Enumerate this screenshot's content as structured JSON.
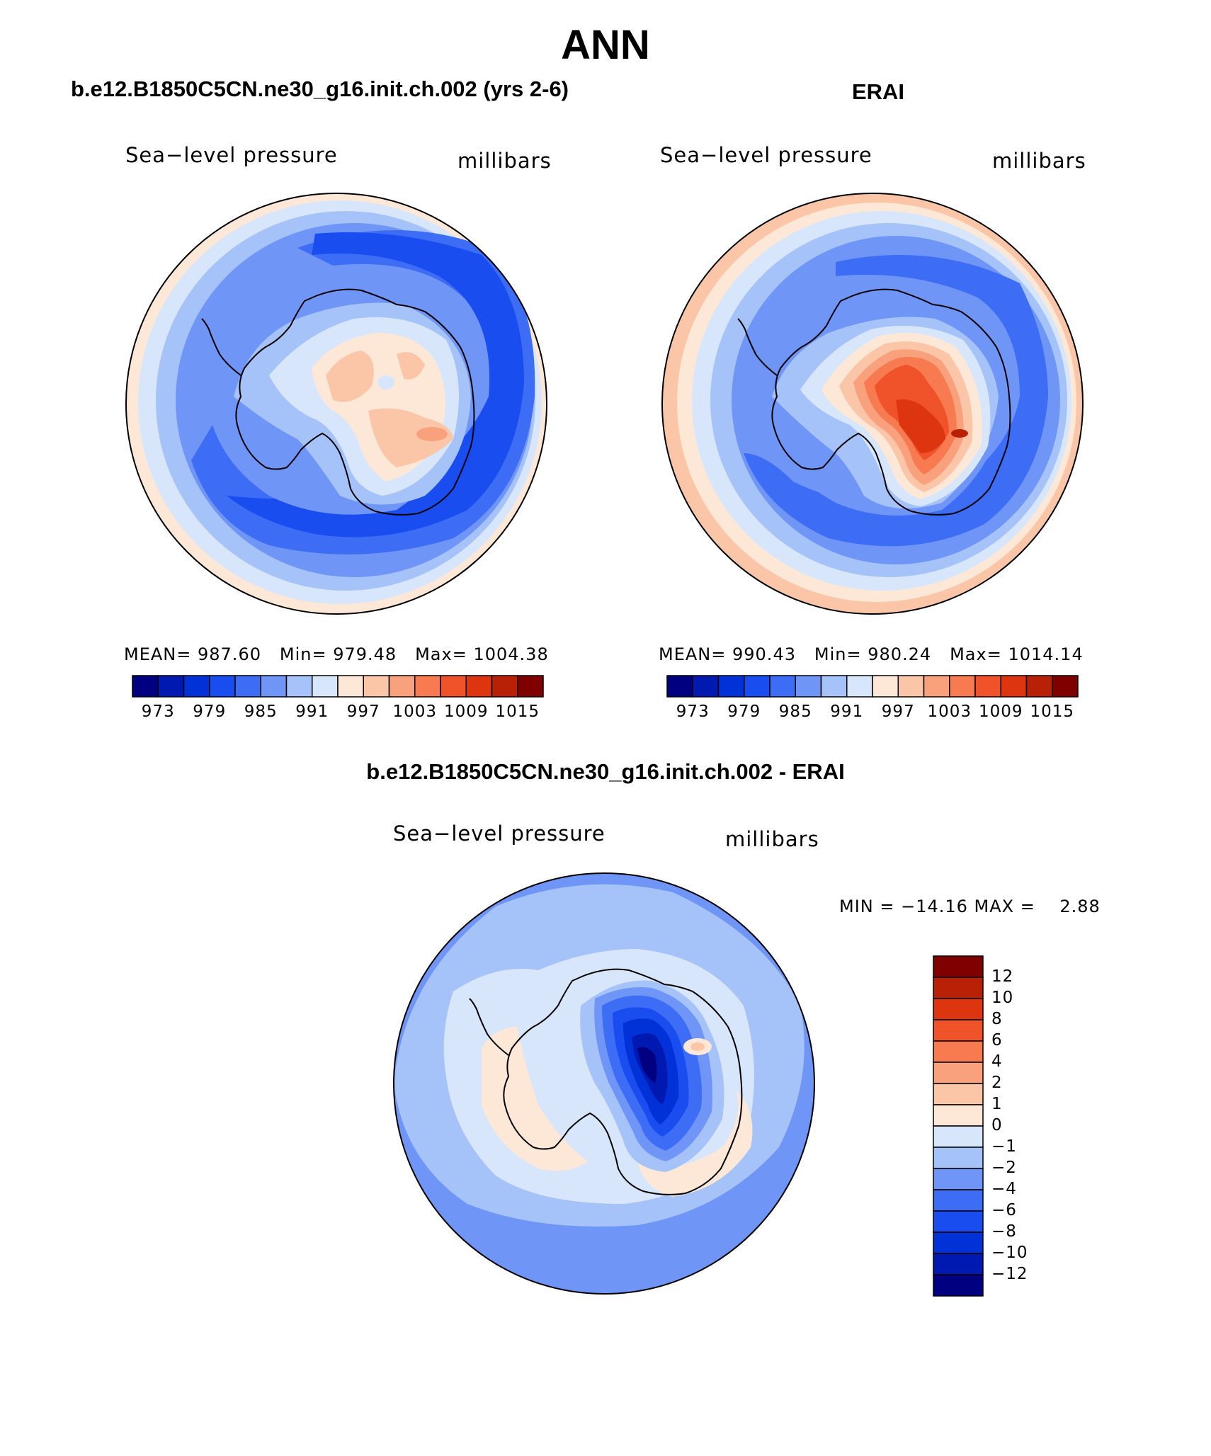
{
  "title": "ANN",
  "panels": [
    {
      "id": "model",
      "case_title": "b.e12.B1850C5CN.ne30_g16.init.ch.002 (yrs 2-6)",
      "variable": "Sea−level pressure",
      "units": "millibars",
      "stats": {
        "mean_label": "MEAN=",
        "mean": "987.60",
        "min_label": "Min=",
        "min": "979.48",
        "max_label": "Max=",
        "max": "1004.38"
      },
      "colorbar_labels": [
        "973",
        "979",
        "985",
        "991",
        "997",
        "1003",
        "1009",
        "1015"
      ]
    },
    {
      "id": "obs",
      "case_title": "ERAI",
      "variable": "Sea−level pressure",
      "units": "millibars",
      "stats": {
        "mean_label": "MEAN=",
        "mean": "990.43",
        "min_label": "Min=",
        "min": "980.24",
        "max_label": "Max=",
        "max": "1014.14"
      },
      "colorbar_labels": [
        "973",
        "979",
        "985",
        "991",
        "997",
        "1003",
        "1009",
        "1015"
      ]
    }
  ],
  "difference": {
    "case_title": "b.e12.B1850C5CN.ne30_g16.init.ch.002 - ERAI",
    "variable": "Sea−level pressure",
    "units": "millibars",
    "minmax": "MIN = −14.16 MAX =    2.88",
    "colorbar_labels": [
      "12",
      "10",
      "8",
      "6",
      "4",
      "2",
      "1",
      "0",
      "−1",
      "−2",
      "−4",
      "−6",
      "−8",
      "−10",
      "−12"
    ]
  },
  "colors": {
    "abs_scale": [
      "#000080",
      "#0019b0",
      "#0032d8",
      "#1a4df0",
      "#3d6cf5",
      "#6f96f7",
      "#a5c2f9",
      "#d8e6fb",
      "#fde8d8",
      "#fbc6a8",
      "#f9a17c",
      "#f77a50",
      "#f0522a",
      "#dd3510",
      "#b82105",
      "#800000"
    ],
    "diff_scale": [
      "#800000",
      "#b82105",
      "#dd3510",
      "#f0522a",
      "#f77a50",
      "#f9a17c",
      "#fbc6a8",
      "#fde8d8",
      "#d8e6fb",
      "#a5c2f9",
      "#6f96f7",
      "#3d6cf5",
      "#1a4df0",
      "#0032d8",
      "#0019b0",
      "#000080"
    ]
  }
}
